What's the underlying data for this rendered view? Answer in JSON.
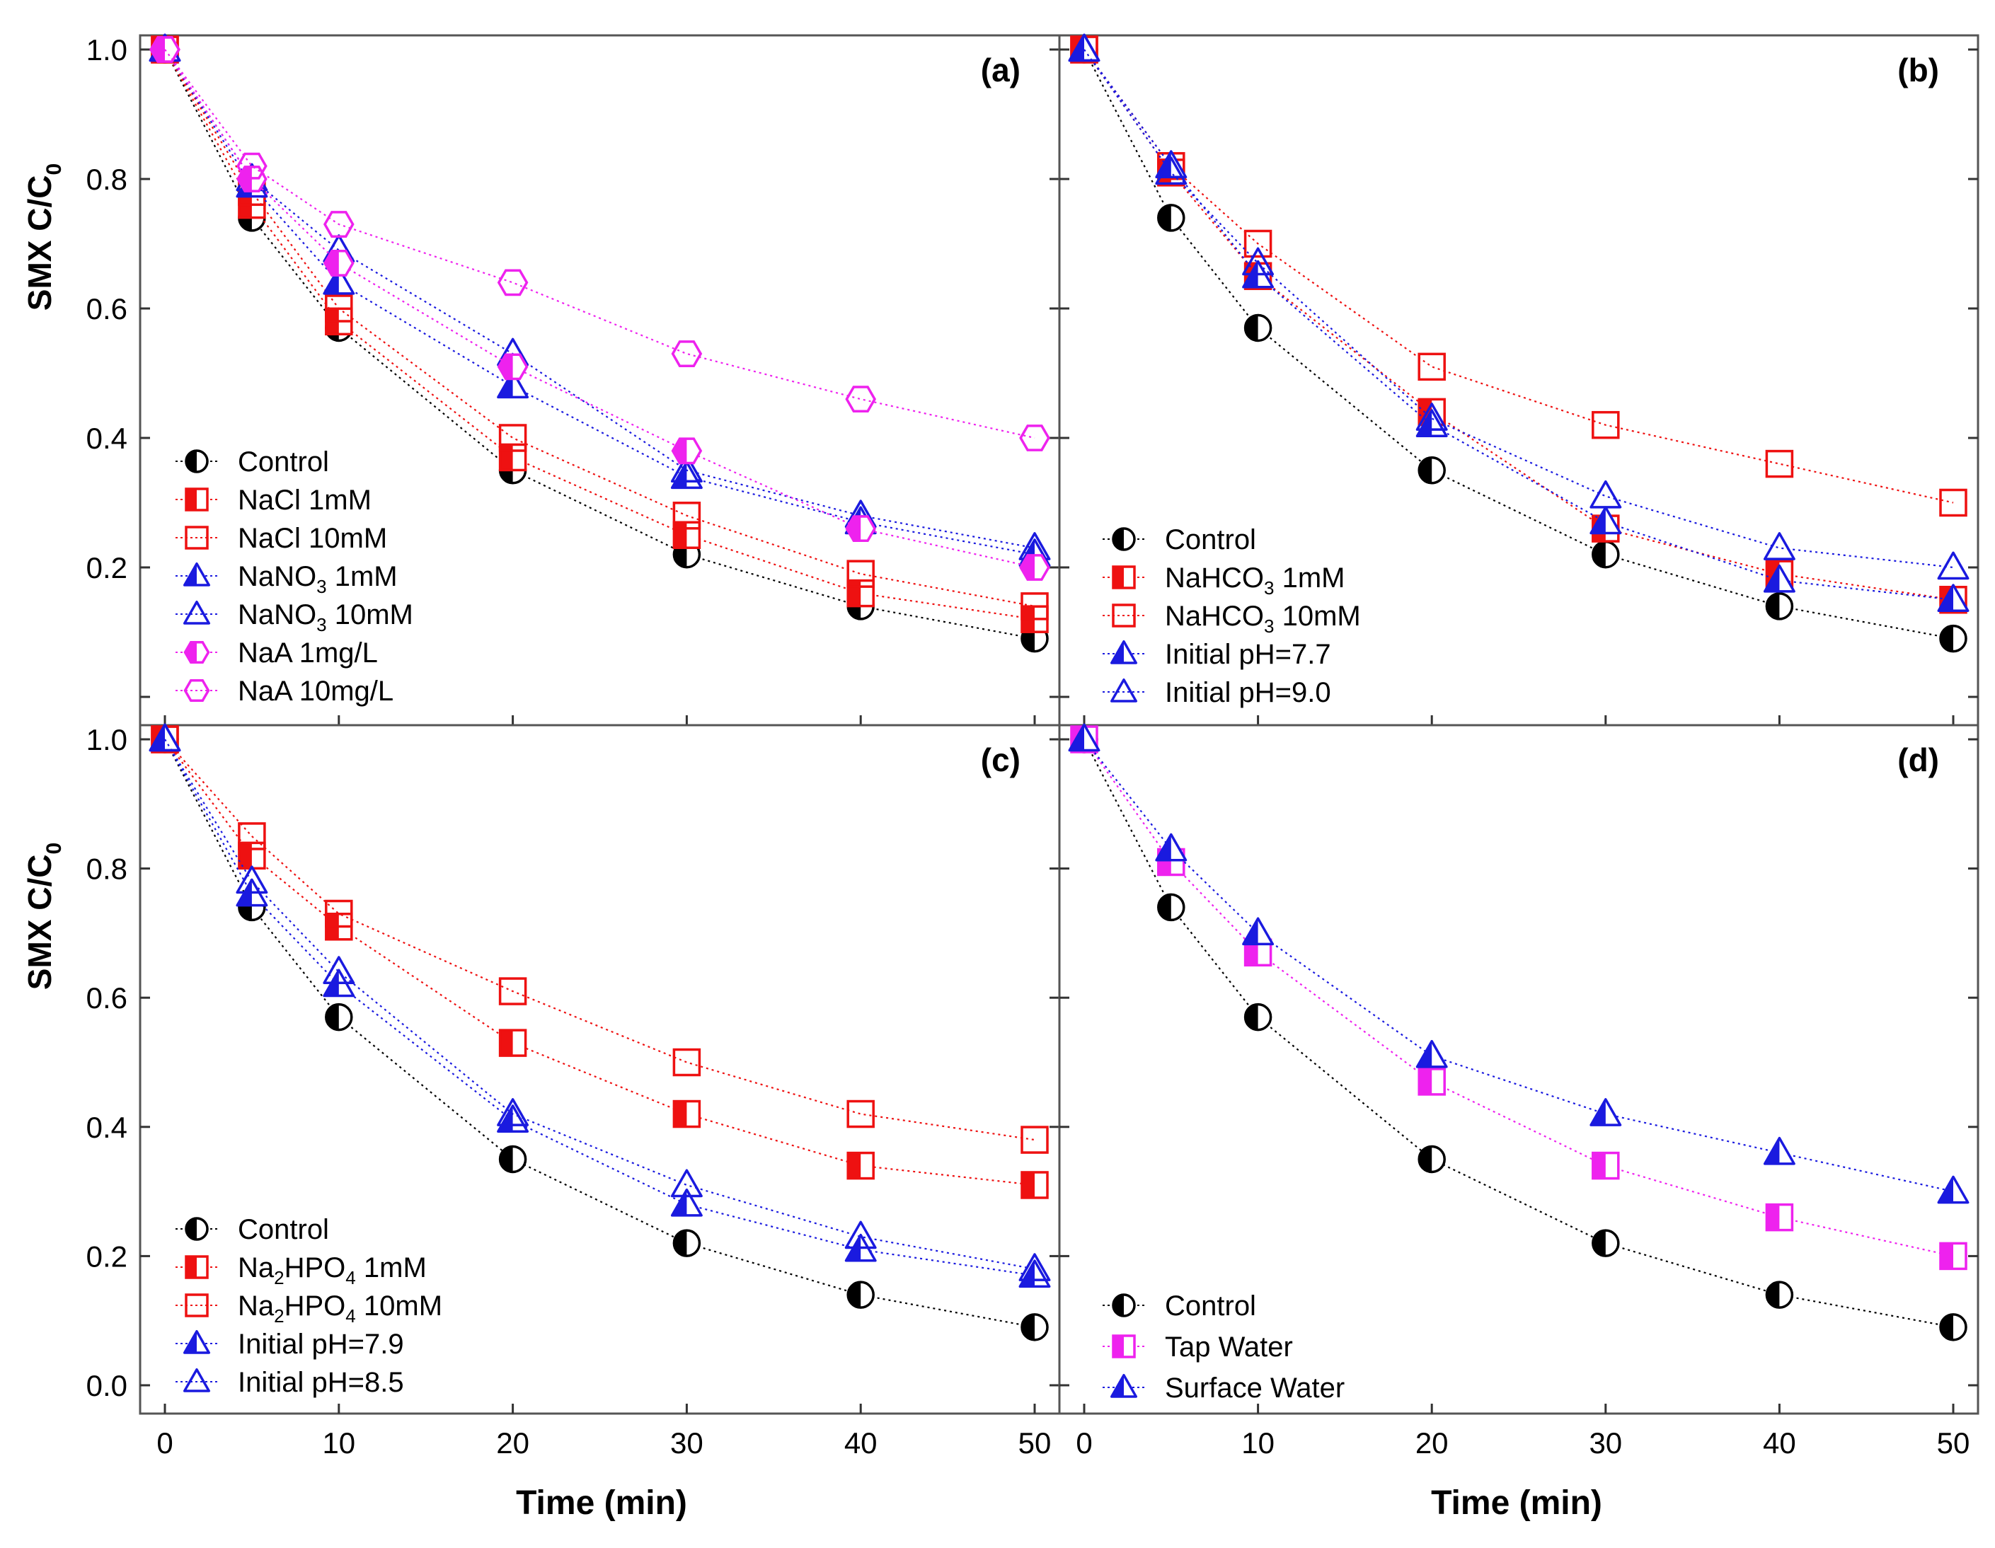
{
  "figure": {
    "y_axis_title": "SMX C/C",
    "y_axis_title_subscript": "0",
    "x_axis_title": "Time (min)"
  },
  "chart_data": [
    {
      "type": "line",
      "panel": "(a)",
      "xlabel": "Time (min)",
      "ylabel": "SMX C/C0",
      "x": [
        0,
        5,
        10,
        20,
        30,
        40,
        50
      ],
      "xlim": [
        0,
        50
      ],
      "ylim": [
        0.0,
        1.0
      ],
      "xticks": [
        "0",
        "10",
        "20",
        "30",
        "40",
        "50"
      ],
      "yticks": [
        "0.2",
        "0.4",
        "0.6",
        "0.8",
        "1.0"
      ],
      "legend_position": "lower-left",
      "series": [
        {
          "name": "Control",
          "label": "Control",
          "sub": "",
          "suffix": "",
          "marker": "circle-half",
          "color": "#000000",
          "values": [
            1.0,
            0.74,
            0.57,
            0.35,
            0.22,
            0.14,
            0.09
          ]
        },
        {
          "name": "NaCl 1mM",
          "label": "NaCl 1mM",
          "sub": "",
          "suffix": "",
          "marker": "square-half",
          "color": "#ee1111",
          "values": [
            1.0,
            0.76,
            0.58,
            0.37,
            0.25,
            0.16,
            0.12
          ]
        },
        {
          "name": "NaCl 10mM",
          "label": "NaCl 10mM",
          "sub": "",
          "suffix": "",
          "marker": "square-open",
          "color": "#ee1111",
          "values": [
            1.0,
            0.78,
            0.6,
            0.4,
            0.28,
            0.19,
            0.14
          ]
        },
        {
          "name": "NaNO3 1mM",
          "label": "NaNO",
          "sub": "3",
          "suffix": " 1mM",
          "marker": "triangle-half",
          "color": "#1a1adf",
          "values": [
            1.0,
            0.79,
            0.64,
            0.48,
            0.34,
            0.27,
            0.22
          ]
        },
        {
          "name": "NaNO3 10mM",
          "label": "NaNO",
          "sub": "3",
          "suffix": " 10mM",
          "marker": "triangle-open",
          "color": "#1a1adf",
          "values": [
            1.0,
            0.8,
            0.69,
            0.53,
            0.35,
            0.28,
            0.23
          ]
        },
        {
          "name": "NaA 1mg/L",
          "label": "NaA 1mg/L",
          "sub": "",
          "suffix": "",
          "marker": "hexagon-half",
          "color": "#ee22ee",
          "values": [
            1.0,
            0.8,
            0.67,
            0.51,
            0.38,
            0.26,
            0.2
          ]
        },
        {
          "name": "NaA 10mg/L",
          "label": "NaA 10mg/L",
          "sub": "",
          "suffix": "",
          "marker": "hexagon-open",
          "color": "#ee22ee",
          "values": [
            1.0,
            0.82,
            0.73,
            0.64,
            0.53,
            0.46,
            0.4
          ]
        }
      ]
    },
    {
      "type": "line",
      "panel": "(b)",
      "xlabel": "Time (min)",
      "ylabel": "SMX C/C0",
      "x": [
        0,
        5,
        10,
        20,
        30,
        40,
        50
      ],
      "xlim": [
        0,
        50
      ],
      "ylim": [
        0.0,
        1.0
      ],
      "xticks": [
        "0",
        "10",
        "20",
        "30",
        "40",
        "50"
      ],
      "yticks": [],
      "legend_position": "lower-left",
      "series": [
        {
          "name": "Control",
          "label": "Control",
          "sub": "",
          "suffix": "",
          "marker": "circle-half",
          "color": "#000000",
          "values": [
            1.0,
            0.74,
            0.57,
            0.35,
            0.22,
            0.14,
            0.09
          ]
        },
        {
          "name": "NaHCO3 1mM",
          "label": "NaHCO",
          "sub": "3",
          "suffix": " 1mM",
          "marker": "square-half",
          "color": "#ee1111",
          "values": [
            1.0,
            0.81,
            0.65,
            0.44,
            0.26,
            0.19,
            0.15
          ]
        },
        {
          "name": "NaHCO3 10mM",
          "label": "NaHCO",
          "sub": "3",
          "suffix": " 10mM",
          "marker": "square-open",
          "color": "#ee1111",
          "values": [
            1.0,
            0.82,
            0.7,
            0.51,
            0.42,
            0.36,
            0.3
          ]
        },
        {
          "name": "Initial pH=7.7",
          "label": "Initial pH=7.7",
          "sub": "",
          "suffix": "",
          "marker": "triangle-half",
          "color": "#1a1adf",
          "values": [
            1.0,
            0.82,
            0.65,
            0.42,
            0.27,
            0.18,
            0.15
          ]
        },
        {
          "name": "Initial pH=9.0",
          "label": "Initial pH=9.0",
          "sub": "",
          "suffix": "",
          "marker": "triangle-open",
          "color": "#1a1adf",
          "values": [
            1.0,
            0.81,
            0.67,
            0.43,
            0.31,
            0.23,
            0.2
          ]
        }
      ]
    },
    {
      "type": "line",
      "panel": "(c)",
      "xlabel": "Time (min)",
      "ylabel": "SMX C/C0",
      "x": [
        0,
        5,
        10,
        20,
        30,
        40,
        50
      ],
      "xlim": [
        0,
        50
      ],
      "ylim": [
        0.0,
        1.0
      ],
      "xticks": [
        "0",
        "10",
        "20",
        "30",
        "40",
        "50"
      ],
      "yticks": [
        "0.0",
        "0.2",
        "0.4",
        "0.6",
        "0.8",
        "1.0"
      ],
      "legend_position": "lower-left",
      "series": [
        {
          "name": "Control",
          "label": "Control",
          "sub": "",
          "suffix": "",
          "marker": "circle-half",
          "color": "#000000",
          "values": [
            1.0,
            0.74,
            0.57,
            0.35,
            0.22,
            0.14,
            0.09
          ]
        },
        {
          "name": "Na2HPO4 1mM",
          "label": "Na",
          "sub": "2",
          "mid": "HPO",
          "sub2": "4",
          "suffix": " 1mM",
          "marker": "square-half",
          "color": "#ee1111",
          "values": [
            1.0,
            0.82,
            0.71,
            0.53,
            0.42,
            0.34,
            0.31
          ]
        },
        {
          "name": "Na2HPO4 10mM",
          "label": "Na",
          "sub": "2",
          "mid": "HPO",
          "sub2": "4",
          "suffix": " 10mM",
          "marker": "square-open",
          "color": "#ee1111",
          "values": [
            1.0,
            0.85,
            0.73,
            0.61,
            0.5,
            0.42,
            0.38
          ]
        },
        {
          "name": "Initial pH=7.9",
          "label": "Initial pH=7.9",
          "sub": "",
          "suffix": "",
          "marker": "triangle-half",
          "color": "#1a1adf",
          "values": [
            1.0,
            0.76,
            0.62,
            0.41,
            0.28,
            0.21,
            0.17
          ]
        },
        {
          "name": "Initial pH=8.5",
          "label": "Initial pH=8.5",
          "sub": "",
          "suffix": "",
          "marker": "triangle-open",
          "color": "#1a1adf",
          "values": [
            1.0,
            0.78,
            0.64,
            0.42,
            0.31,
            0.23,
            0.18
          ]
        }
      ]
    },
    {
      "type": "line",
      "panel": "(d)",
      "xlabel": "Time (min)",
      "ylabel": "SMX C/C0",
      "x": [
        0,
        5,
        10,
        20,
        30,
        40,
        50
      ],
      "xlim": [
        0,
        50
      ],
      "ylim": [
        0.0,
        1.0
      ],
      "xticks": [
        "0",
        "10",
        "20",
        "30",
        "40",
        "50"
      ],
      "yticks": [],
      "legend_position": "lower-left",
      "series": [
        {
          "name": "Control",
          "label": "Control",
          "sub": "",
          "suffix": "",
          "marker": "circle-half",
          "color": "#000000",
          "values": [
            1.0,
            0.74,
            0.57,
            0.35,
            0.22,
            0.14,
            0.09
          ]
        },
        {
          "name": "Tap Water",
          "label": "Tap Water",
          "sub": "",
          "suffix": "",
          "marker": "square-half",
          "color": "#ee22ee",
          "values": [
            1.0,
            0.81,
            0.67,
            0.47,
            0.34,
            0.26,
            0.2
          ]
        },
        {
          "name": "Surface Water",
          "label": "Surface Water",
          "sub": "",
          "suffix": "",
          "marker": "triangle-half",
          "color": "#1a1adf",
          "values": [
            1.0,
            0.83,
            0.7,
            0.51,
            0.42,
            0.36,
            0.3
          ]
        }
      ]
    }
  ]
}
